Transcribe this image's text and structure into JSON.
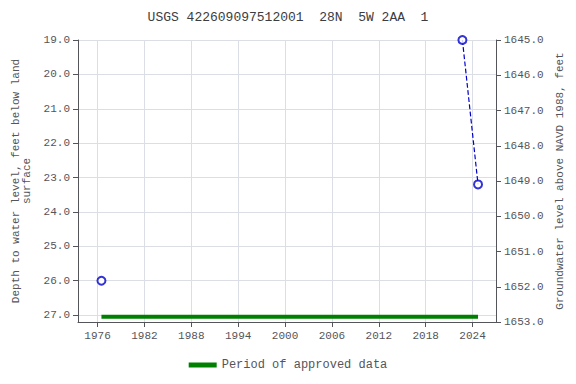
{
  "chart_data": {
    "type": "scatter",
    "title": "USGS 422609097512001  28N  5W 2AA  1",
    "y_label": "Depth to water level, feet below land\nsurface",
    "y2_label": "Groundwater level above NAVD 1988, feet",
    "xlim": [
      1973.5,
      2027.0
    ],
    "xticks": [
      1976,
      1982,
      1988,
      1994,
      2000,
      2006,
      2012,
      2018,
      2024
    ],
    "ylim": [
      27.2,
      19.0
    ],
    "yticks": [
      {
        "value": 19.0,
        "label": "19.0"
      },
      {
        "value": 20.0,
        "label": "20.0"
      },
      {
        "value": 21.0,
        "label": "21.0"
      },
      {
        "value": 22.0,
        "label": "22.0"
      },
      {
        "value": 23.0,
        "label": "23.0"
      },
      {
        "value": 24.0,
        "label": "24.0"
      },
      {
        "value": 25.0,
        "label": "25.0"
      },
      {
        "value": 26.0,
        "label": "26.0"
      },
      {
        "value": 27.0,
        "label": "27.0"
      }
    ],
    "y2lim": [
      1653.0,
      1645.0
    ],
    "y2ticks": [
      {
        "value": 1653.0,
        "label": "1653.0"
      },
      {
        "value": 1652.0,
        "label": "1652.0"
      },
      {
        "value": 1651.0,
        "label": "1651.0"
      },
      {
        "value": 1650.0,
        "label": "1650.0"
      },
      {
        "value": 1649.0,
        "label": "1649.0"
      },
      {
        "value": 1648.0,
        "label": "1648.0"
      },
      {
        "value": 1647.0,
        "label": "1647.0"
      },
      {
        "value": 1646.0,
        "label": "1646.0"
      },
      {
        "value": 1645.0,
        "label": "1645.0"
      }
    ],
    "grid": true,
    "legend": "bottom",
    "series": [
      {
        "type": "scatter",
        "x": [
          1976.5,
          2022.7,
          2024.7
        ],
        "values": [
          26.0,
          19.0,
          23.2
        ],
        "color": "#0000cc",
        "marker": "emptyCircle"
      },
      {
        "type": "line",
        "x": [
          2022.7,
          2024.7
        ],
        "values": [
          19.0,
          23.2
        ],
        "color": "#0000cc",
        "line_style": "dashed"
      },
      {
        "name": "Period of approved data",
        "type": "line",
        "x": [
          1976.5,
          2024.7
        ],
        "values": [
          27.05,
          27.05
        ],
        "color": "#008000",
        "line_style": "solid"
      }
    ]
  }
}
